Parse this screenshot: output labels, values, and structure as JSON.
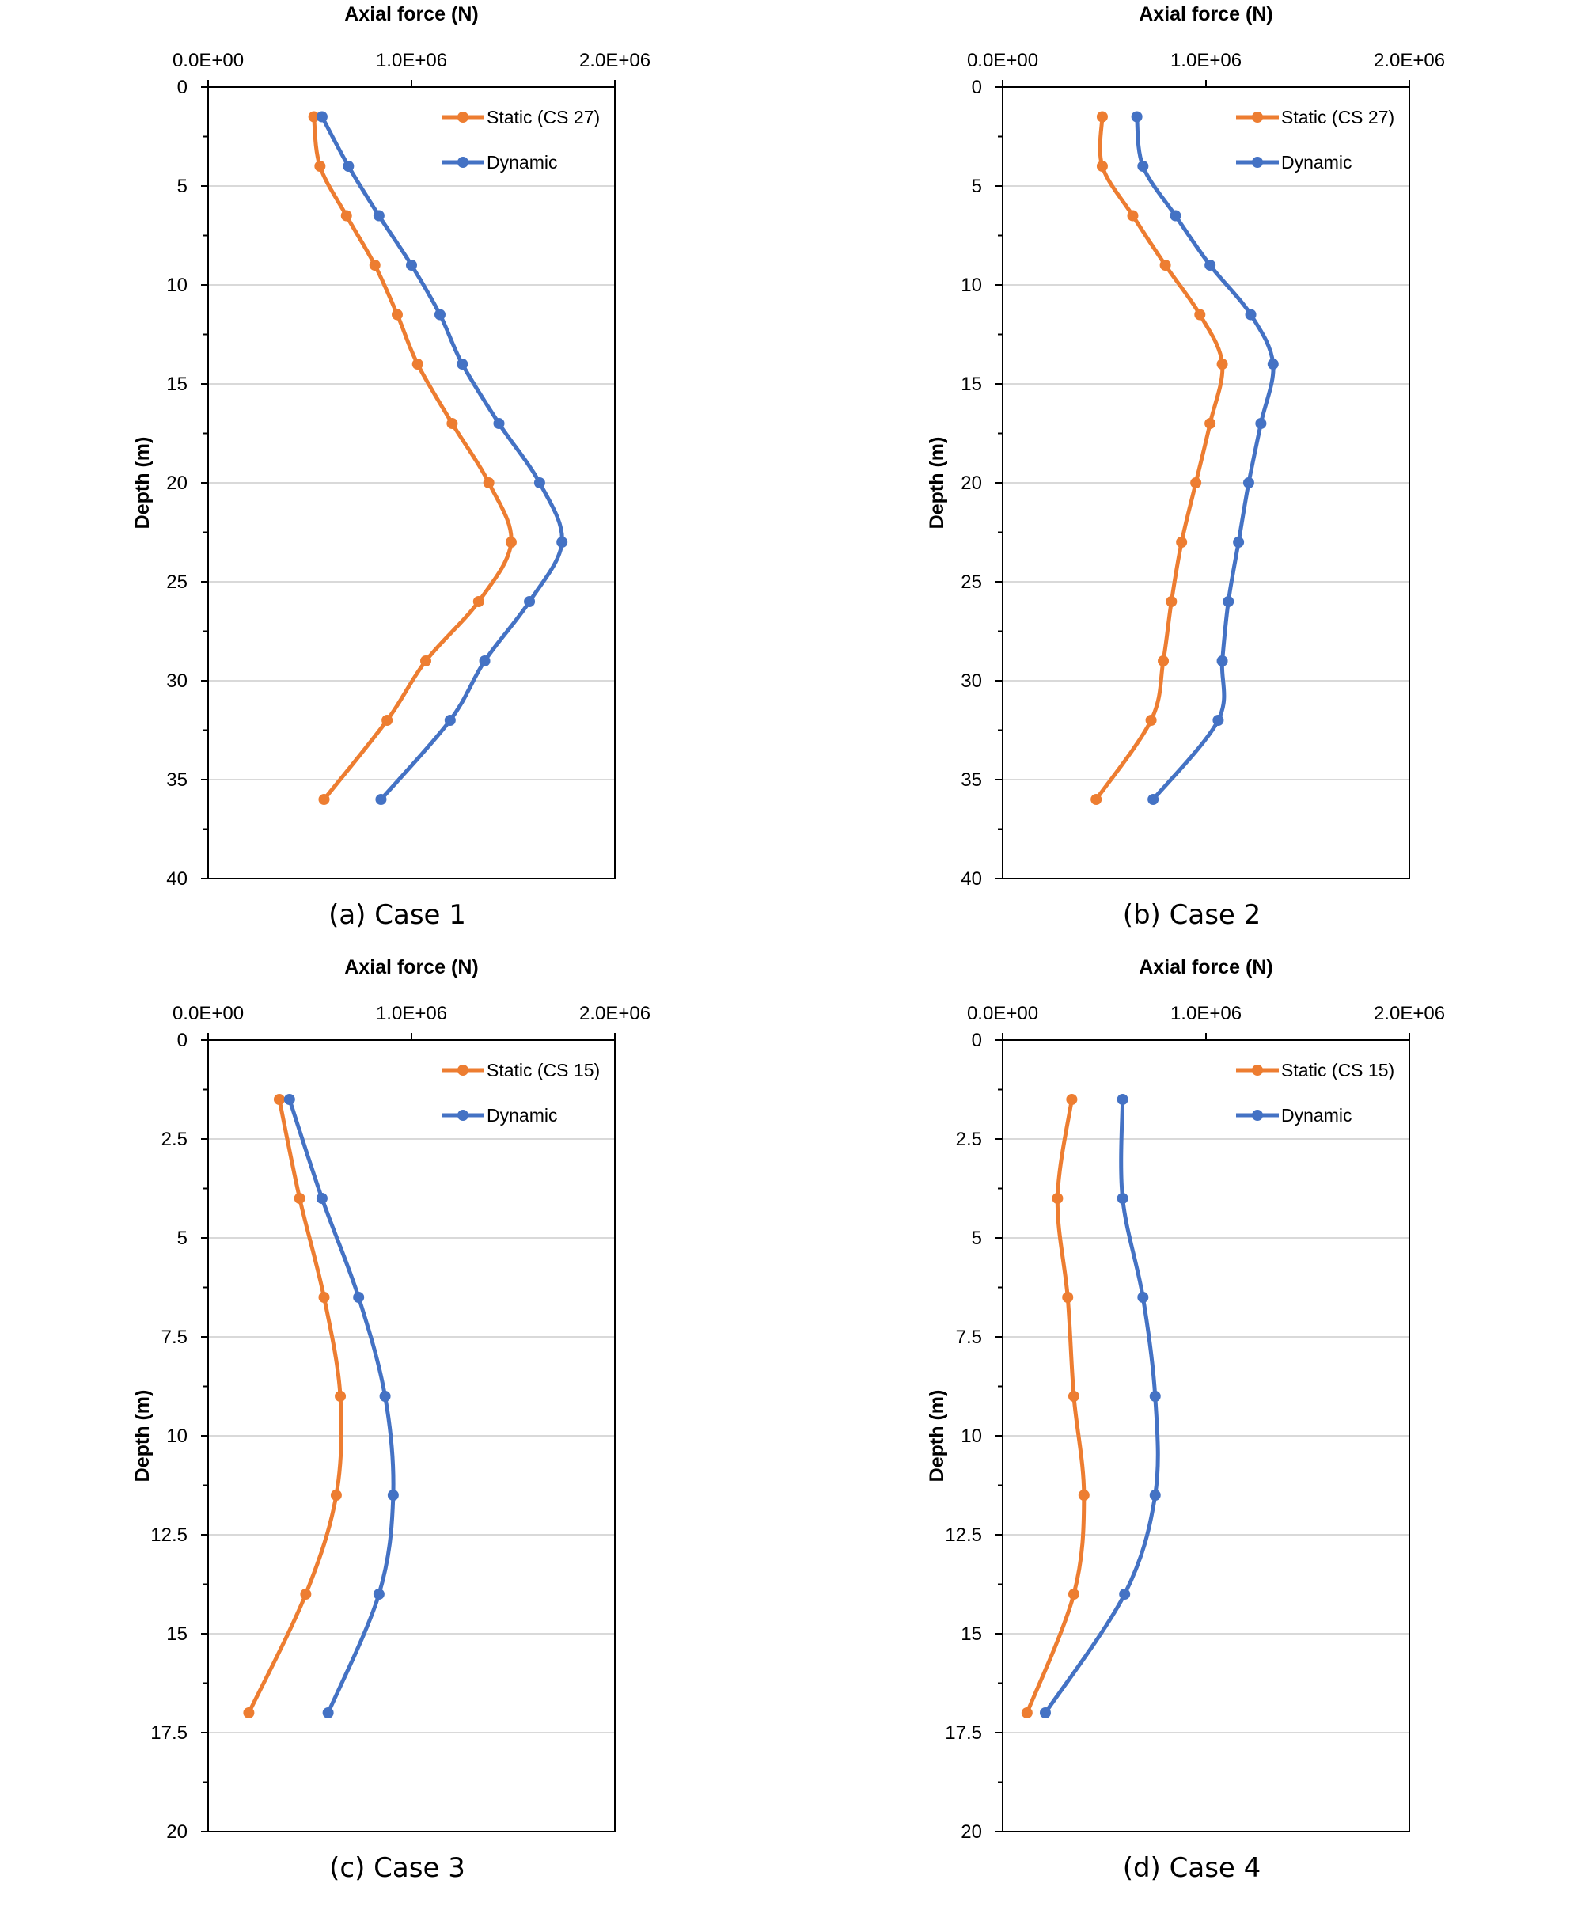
{
  "charts": [
    {
      "caption": "(a) Case 1",
      "chart_data": {
        "type": "line",
        "title": "",
        "xlabel": "Axial force (N)",
        "ylabel": "Depth (m)",
        "xlim": [
          0,
          2000000
        ],
        "ylim": [
          0,
          40
        ],
        "x_axis_position": "top",
        "y_inverted": true,
        "x_ticks": [
          "0.0E+00",
          "1.0E+06",
          "2.0E+06"
        ],
        "y_ticks": [
          "0",
          "5",
          "10",
          "15",
          "20",
          "25",
          "30",
          "35",
          "40"
        ],
        "y_tick_values": [
          0,
          5,
          10,
          15,
          20,
          25,
          30,
          35,
          40
        ],
        "grid": "horizontal",
        "legend": "top-right",
        "series": [
          {
            "name": "Static (CS 27)",
            "color": "#ED7D31",
            "x": [
              520000,
              550000,
              680000,
              820000,
              930000,
              1030000,
              1200000,
              1380000,
              1490000,
              1330000,
              1070000,
              880000,
              570000
            ],
            "y": [
              1.5,
              4,
              6.5,
              9,
              11.5,
              14,
              17,
              20,
              23,
              26,
              29,
              32,
              36
            ]
          },
          {
            "name": "Dynamic",
            "color": "#4472C4",
            "x": [
              560000,
              690000,
              840000,
              1000000,
              1140000,
              1250000,
              1430000,
              1630000,
              1740000,
              1580000,
              1360000,
              1190000,
              850000
            ],
            "y": [
              1.5,
              4,
              6.5,
              9,
              11.5,
              14,
              17,
              20,
              23,
              26,
              29,
              32,
              36
            ]
          }
        ]
      }
    },
    {
      "caption": "(b) Case 2",
      "chart_data": {
        "type": "line",
        "title": "",
        "xlabel": "Axial force (N)",
        "ylabel": "Depth (m)",
        "xlim": [
          0,
          2000000
        ],
        "ylim": [
          0,
          40
        ],
        "x_axis_position": "top",
        "y_inverted": true,
        "x_ticks": [
          "0.0E+00",
          "1.0E+06",
          "2.0E+06"
        ],
        "y_ticks": [
          "0",
          "5",
          "10",
          "15",
          "20",
          "25",
          "30",
          "35",
          "40"
        ],
        "y_tick_values": [
          0,
          5,
          10,
          15,
          20,
          25,
          30,
          35,
          40
        ],
        "grid": "horizontal",
        "legend": "top-right",
        "series": [
          {
            "name": "Static (CS 27)",
            "color": "#ED7D31",
            "x": [
              490000,
              490000,
              640000,
              800000,
              970000,
              1080000,
              1020000,
              950000,
              880000,
              830000,
              790000,
              730000,
              460000
            ],
            "y": [
              1.5,
              4,
              6.5,
              9,
              11.5,
              14,
              17,
              20,
              23,
              26,
              29,
              32,
              36
            ]
          },
          {
            "name": "Dynamic",
            "color": "#4472C4",
            "x": [
              660000,
              690000,
              850000,
              1020000,
              1220000,
              1330000,
              1270000,
              1210000,
              1160000,
              1110000,
              1080000,
              1060000,
              740000
            ],
            "y": [
              1.5,
              4,
              6.5,
              9,
              11.5,
              14,
              17,
              20,
              23,
              26,
              29,
              32,
              36
            ]
          }
        ]
      }
    },
    {
      "caption": "(c) Case 3",
      "chart_data": {
        "type": "line",
        "title": "",
        "xlabel": "Axial force (N)",
        "ylabel": "Depth (m)",
        "xlim": [
          0,
          2000000
        ],
        "ylim": [
          0,
          20
        ],
        "x_axis_position": "top",
        "y_inverted": true,
        "x_ticks": [
          "0.0E+00",
          "1.0E+06",
          "2.0E+06"
        ],
        "y_ticks": [
          "0",
          "2.5",
          "5",
          "7.5",
          "10",
          "12.5",
          "15",
          "17.5",
          "20"
        ],
        "y_tick_values": [
          0,
          2.5,
          5,
          7.5,
          10,
          12.5,
          15,
          17.5,
          20
        ],
        "grid": "horizontal",
        "legend": "top-right",
        "series": [
          {
            "name": "Static (CS 15)",
            "color": "#ED7D31",
            "x": [
              350000,
              450000,
              570000,
              650000,
              630000,
              480000,
              200000
            ],
            "y": [
              1.5,
              4,
              6.5,
              9,
              11.5,
              14,
              17
            ]
          },
          {
            "name": "Dynamic",
            "color": "#4472C4",
            "x": [
              400000,
              560000,
              740000,
              870000,
              910000,
              840000,
              590000
            ],
            "y": [
              1.5,
              4,
              6.5,
              9,
              11.5,
              14,
              17
            ]
          }
        ]
      }
    },
    {
      "caption": "(d) Case 4",
      "chart_data": {
        "type": "line",
        "title": "",
        "xlabel": "Axial force (N)",
        "ylabel": "Depth (m)",
        "xlim": [
          0,
          2000000
        ],
        "ylim": [
          0,
          20
        ],
        "x_axis_position": "top",
        "y_inverted": true,
        "x_ticks": [
          "0.0E+00",
          "1.0E+06",
          "2.0E+06"
        ],
        "y_ticks": [
          "0",
          "2.5",
          "5",
          "7.5",
          "10",
          "12.5",
          "15",
          "17.5",
          "20"
        ],
        "y_tick_values": [
          0,
          2.5,
          5,
          7.5,
          10,
          12.5,
          15,
          17.5,
          20
        ],
        "grid": "horizontal",
        "legend": "top-right",
        "series": [
          {
            "name": "Static (CS 15)",
            "color": "#ED7D31",
            "x": [
              340000,
              270000,
              320000,
              350000,
              400000,
              350000,
              120000
            ],
            "y": [
              1.5,
              4,
              6.5,
              9,
              11.5,
              14,
              17
            ]
          },
          {
            "name": "Dynamic",
            "color": "#4472C4",
            "x": [
              590000,
              590000,
              690000,
              750000,
              750000,
              600000,
              210000
            ],
            "y": [
              1.5,
              4,
              6.5,
              9,
              11.5,
              14,
              17
            ]
          }
        ]
      }
    }
  ]
}
